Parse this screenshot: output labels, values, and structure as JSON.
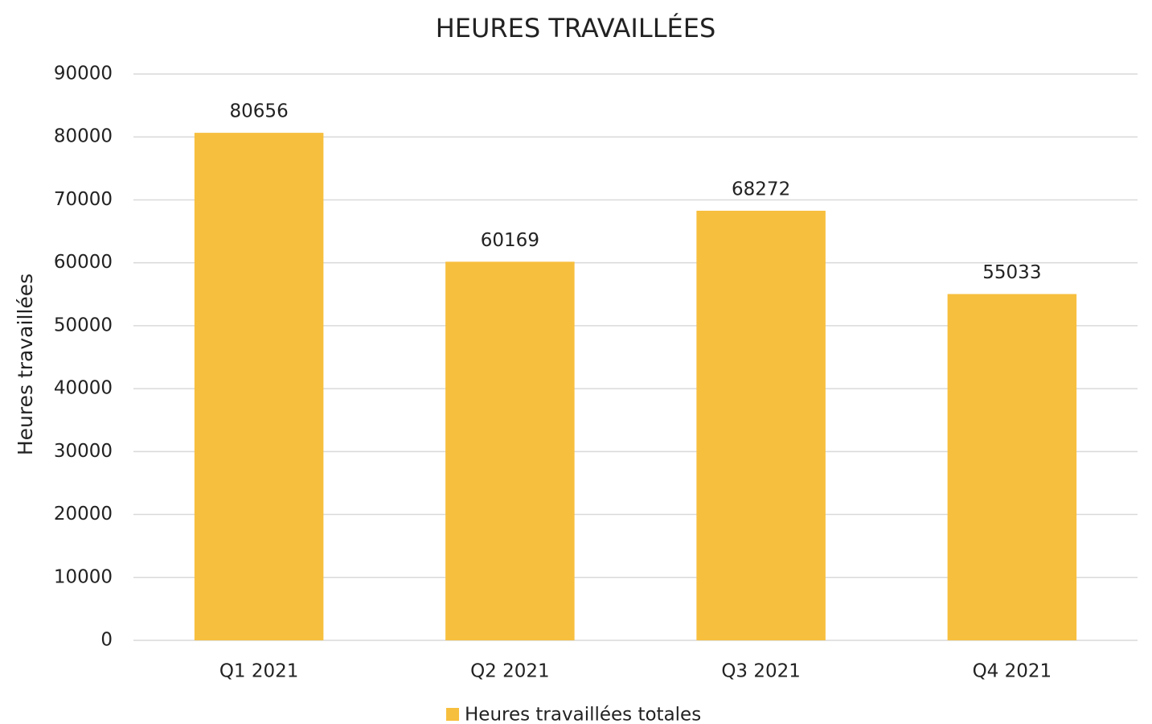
{
  "chart_data": {
    "type": "bar",
    "title": "HEURES TRAVAILLÉES",
    "y_label": "Heures travaillées",
    "categories": [
      "Q1 2021",
      "Q2 2021",
      "Q3 2021",
      "Q4 2021"
    ],
    "series": [
      {
        "name": "Heures travaillées totales",
        "color": "#f7bf3e",
        "values": [
          80656,
          60169,
          68272,
          55033
        ]
      }
    ],
    "ylim": [
      0,
      90000
    ],
    "yticks": [
      0,
      10000,
      20000,
      30000,
      40000,
      50000,
      60000,
      70000,
      80000,
      90000
    ],
    "grid": true,
    "legend": "bottom"
  }
}
